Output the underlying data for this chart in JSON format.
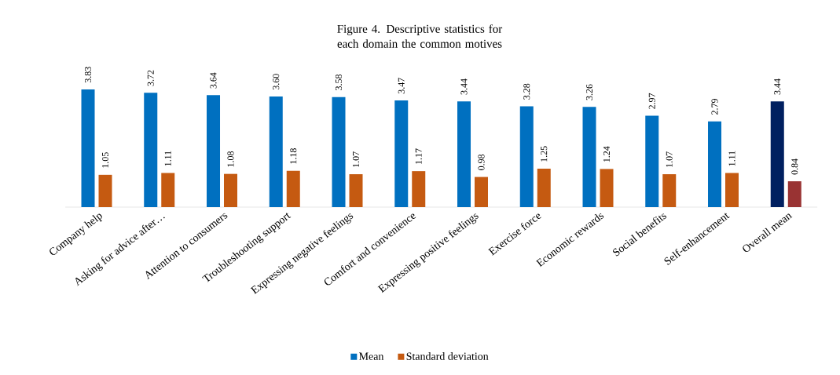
{
  "chart_data": {
    "type": "bar",
    "title": "Figure 4. Descriptive statistics for each domain the common motives",
    "categories": [
      "Company help",
      "Asking for advice after…",
      "Attention to consumers",
      "Troubleshooting support",
      "Expressing negative feelings",
      "Comfort and convenience",
      "Expressing positive feelings",
      "Exercise force",
      "Economic rewards",
      "Social benefits",
      "Self-enhancement",
      "Overall mean"
    ],
    "series": [
      {
        "name": "Mean",
        "color": "#0070c0",
        "colors": [
          "#0070c0",
          "#0070c0",
          "#0070c0",
          "#0070c0",
          "#0070c0",
          "#0070c0",
          "#0070c0",
          "#0070c0",
          "#0070c0",
          "#0070c0",
          "#0070c0",
          "#002060"
        ],
        "values": [
          3.83,
          3.72,
          3.64,
          3.6,
          3.58,
          3.47,
          3.44,
          3.28,
          3.26,
          2.97,
          2.79,
          3.44
        ],
        "value_labels": [
          "3.83",
          "3.72",
          "3.64",
          "3.60",
          "3.58",
          "3.47",
          "3.44",
          "3.28",
          "3.26",
          "2.97",
          "2.79",
          "3.44"
        ]
      },
      {
        "name": "Standard deviation",
        "color": "#c55a11",
        "colors": [
          "#c55a11",
          "#c55a11",
          "#c55a11",
          "#c55a11",
          "#c55a11",
          "#c55a11",
          "#c55a11",
          "#c55a11",
          "#c55a11",
          "#c55a11",
          "#c55a11",
          "#993333"
        ],
        "values": [
          1.05,
          1.11,
          1.08,
          1.18,
          1.07,
          1.17,
          0.98,
          1.25,
          1.24,
          1.07,
          1.11,
          0.84
        ],
        "value_labels": [
          "1.05",
          "1.11",
          "1.08",
          "1.18",
          "1.07",
          "1.17",
          "0.98",
          "1.25",
          "1.24",
          "1.07",
          "1.11",
          "0.84"
        ]
      }
    ],
    "ylim": [
      0,
      3.83
    ],
    "tick_labels": "x",
    "legend": "bottom"
  }
}
